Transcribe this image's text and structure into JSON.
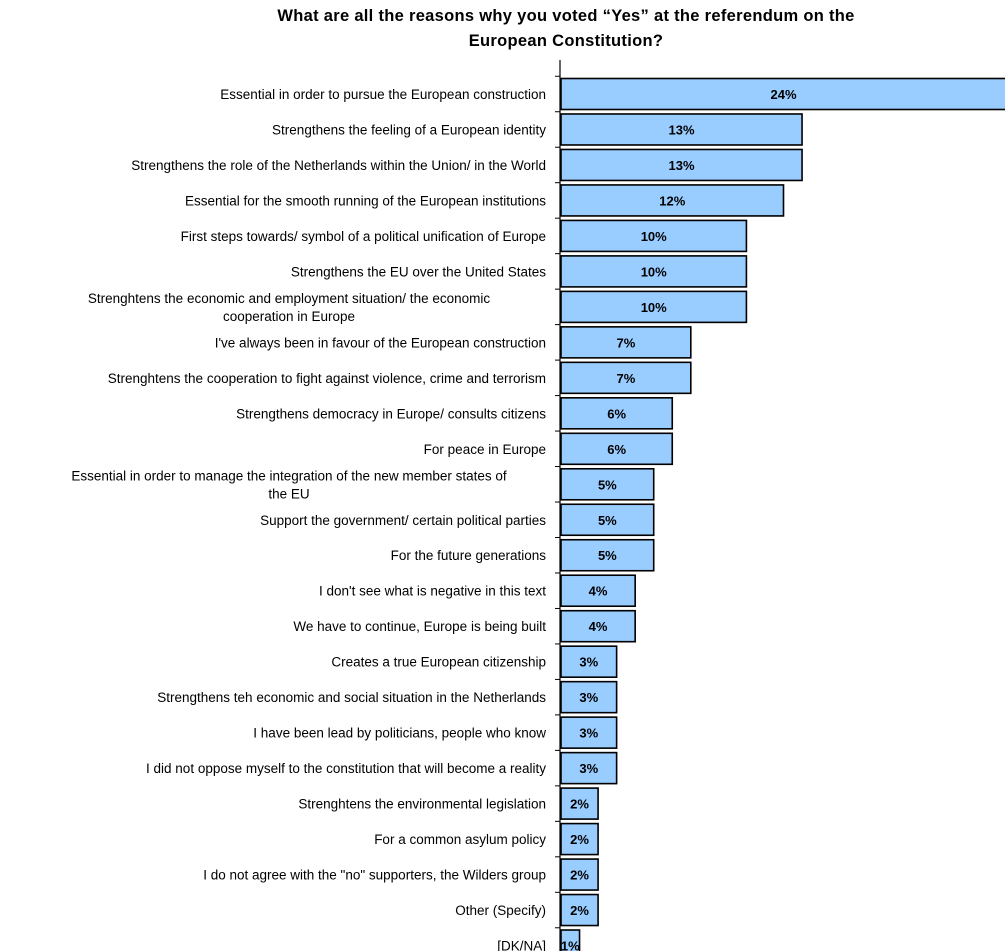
{
  "chart_data": {
    "type": "bar",
    "orientation": "horizontal",
    "title_lines": [
      "What are all the reasons why you voted “Yes” at the referendum on the",
      "European Constitution?"
    ],
    "bar_color": "#99CCFF",
    "value_suffix": "%",
    "grid": false,
    "legend": "none",
    "xlim": [
      0,
      24
    ],
    "categories": [
      [
        "Essential in order to pursue the European construction"
      ],
      [
        "Strengthens the feeling of a European identity"
      ],
      [
        "Strengthens the role of the Netherlands within the Union/ in the World"
      ],
      [
        "Essential for the smooth running of the European institutions"
      ],
      [
        "First steps towards/ symbol of a political unification of Europe"
      ],
      [
        "Strengthens the EU over the United States"
      ],
      [
        "Strenghtens the economic and employment situation/ the economic",
        "cooperation in Europe"
      ],
      [
        "I've always been in favour of the European construction"
      ],
      [
        "Strenghtens the cooperation to fight against violence, crime and terrorism"
      ],
      [
        "Strengthens democracy in Europe/ consults citizens"
      ],
      [
        "For peace in Europe"
      ],
      [
        "Essential in order to manage the integration of the new member states of",
        "the EU"
      ],
      [
        "Support the government/ certain political parties"
      ],
      [
        "For the future generations"
      ],
      [
        "I don't see what is negative in this text"
      ],
      [
        "We have to continue, Europe is being built"
      ],
      [
        "Creates a true European citizenship"
      ],
      [
        "Strengthens teh economic and social situation in the Netherlands"
      ],
      [
        "I have been lead by politicians, people who know"
      ],
      [
        "I did not oppose myself to the constitution that will become a reality"
      ],
      [
        "Strenghtens the environmental legislation"
      ],
      [
        "For a common asylum policy"
      ],
      [
        "I do not agree with the \"no\" supporters, the Wilders group"
      ],
      [
        "Other (Specify)"
      ],
      [
        "[DK/NA]"
      ]
    ],
    "values": [
      24,
      13,
      13,
      12,
      10,
      10,
      10,
      7,
      7,
      6,
      6,
      5,
      5,
      5,
      4,
      4,
      3,
      3,
      3,
      3,
      2,
      2,
      2,
      2,
      1
    ]
  }
}
